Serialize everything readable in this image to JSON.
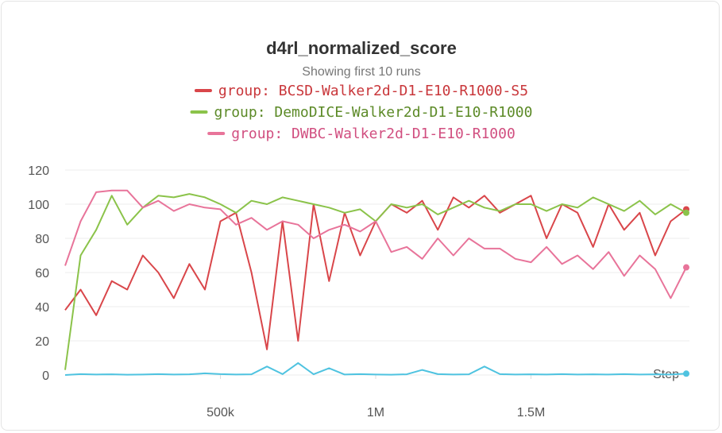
{
  "chart_data": {
    "type": "line",
    "title": "d4rl_normalized_score",
    "subtitle": "Showing first 10 runs",
    "x_label": "Step",
    "x": [
      0,
      50000,
      100000,
      150000,
      200000,
      250000,
      300000,
      350000,
      400000,
      450000,
      500000,
      550000,
      600000,
      650000,
      700000,
      750000,
      800000,
      850000,
      900000,
      950000,
      1000000,
      1050000,
      1100000,
      1150000,
      1200000,
      1250000,
      1300000,
      1350000,
      1400000,
      1450000,
      1500000,
      1550000,
      1600000,
      1650000,
      1700000,
      1750000,
      1800000,
      1850000,
      1900000,
      1950000,
      2000000
    ],
    "xlim": [
      0,
      2000000
    ],
    "xticks": [
      {
        "value": 500000,
        "label": "500k"
      },
      {
        "value": 1000000,
        "label": "1M"
      },
      {
        "value": 1500000,
        "label": "1.5M"
      }
    ],
    "ylim": [
      0,
      120
    ],
    "yticks": [
      0,
      20,
      40,
      60,
      80,
      100,
      120
    ],
    "grid": true,
    "series": [
      {
        "name": "group: BCSD-Walker2d-D1-E10-R1000-S5",
        "color": "#d9464a",
        "values": [
          38,
          50,
          35,
          55,
          50,
          70,
          60,
          45,
          65,
          50,
          90,
          95,
          60,
          15,
          90,
          20,
          100,
          55,
          95,
          70,
          90,
          100,
          95,
          102,
          85,
          104,
          98,
          105,
          95,
          100,
          105,
          80,
          100,
          95,
          75,
          100,
          85,
          95,
          70,
          90,
          97
        ]
      },
      {
        "name": "group: DemoDICE-Walker2d-D1-E10-R1000",
        "color": "#8bc34a",
        "values": [
          3,
          70,
          85,
          105,
          88,
          98,
          105,
          104,
          106,
          104,
          100,
          95,
          102,
          100,
          104,
          102,
          100,
          98,
          95,
          97,
          90,
          100,
          98,
          100,
          94,
          98,
          102,
          98,
          96,
          100,
          100,
          96,
          100,
          98,
          104,
          100,
          96,
          102,
          94,
          100,
          95
        ]
      },
      {
        "name": "group: DWBC-Walker2d-D1-E10-R1000",
        "color": "#e8749a",
        "values": [
          64,
          90,
          107,
          108,
          108,
          98,
          102,
          96,
          100,
          98,
          97,
          88,
          92,
          85,
          90,
          88,
          80,
          85,
          88,
          84,
          90,
          72,
          75,
          68,
          80,
          70,
          80,
          74,
          74,
          68,
          66,
          75,
          65,
          70,
          62,
          72,
          58,
          70,
          62,
          45,
          63
        ]
      },
      {
        "color": "#4fc3e0",
        "values": [
          0,
          0.5,
          0.3,
          0.4,
          0.2,
          0.3,
          0.5,
          0.3,
          0.4,
          1,
          0.5,
          0.3,
          0.4,
          5,
          0.5,
          7,
          0.4,
          4,
          0.3,
          0.5,
          0.3,
          0.2,
          0.4,
          3,
          0.5,
          0.3,
          0.4,
          5,
          0.5,
          0.3,
          0.4,
          0.3,
          0.5,
          0.3,
          0.4,
          0.3,
          0.5,
          0.3,
          0.4,
          0.3,
          0.8
        ]
      }
    ]
  }
}
